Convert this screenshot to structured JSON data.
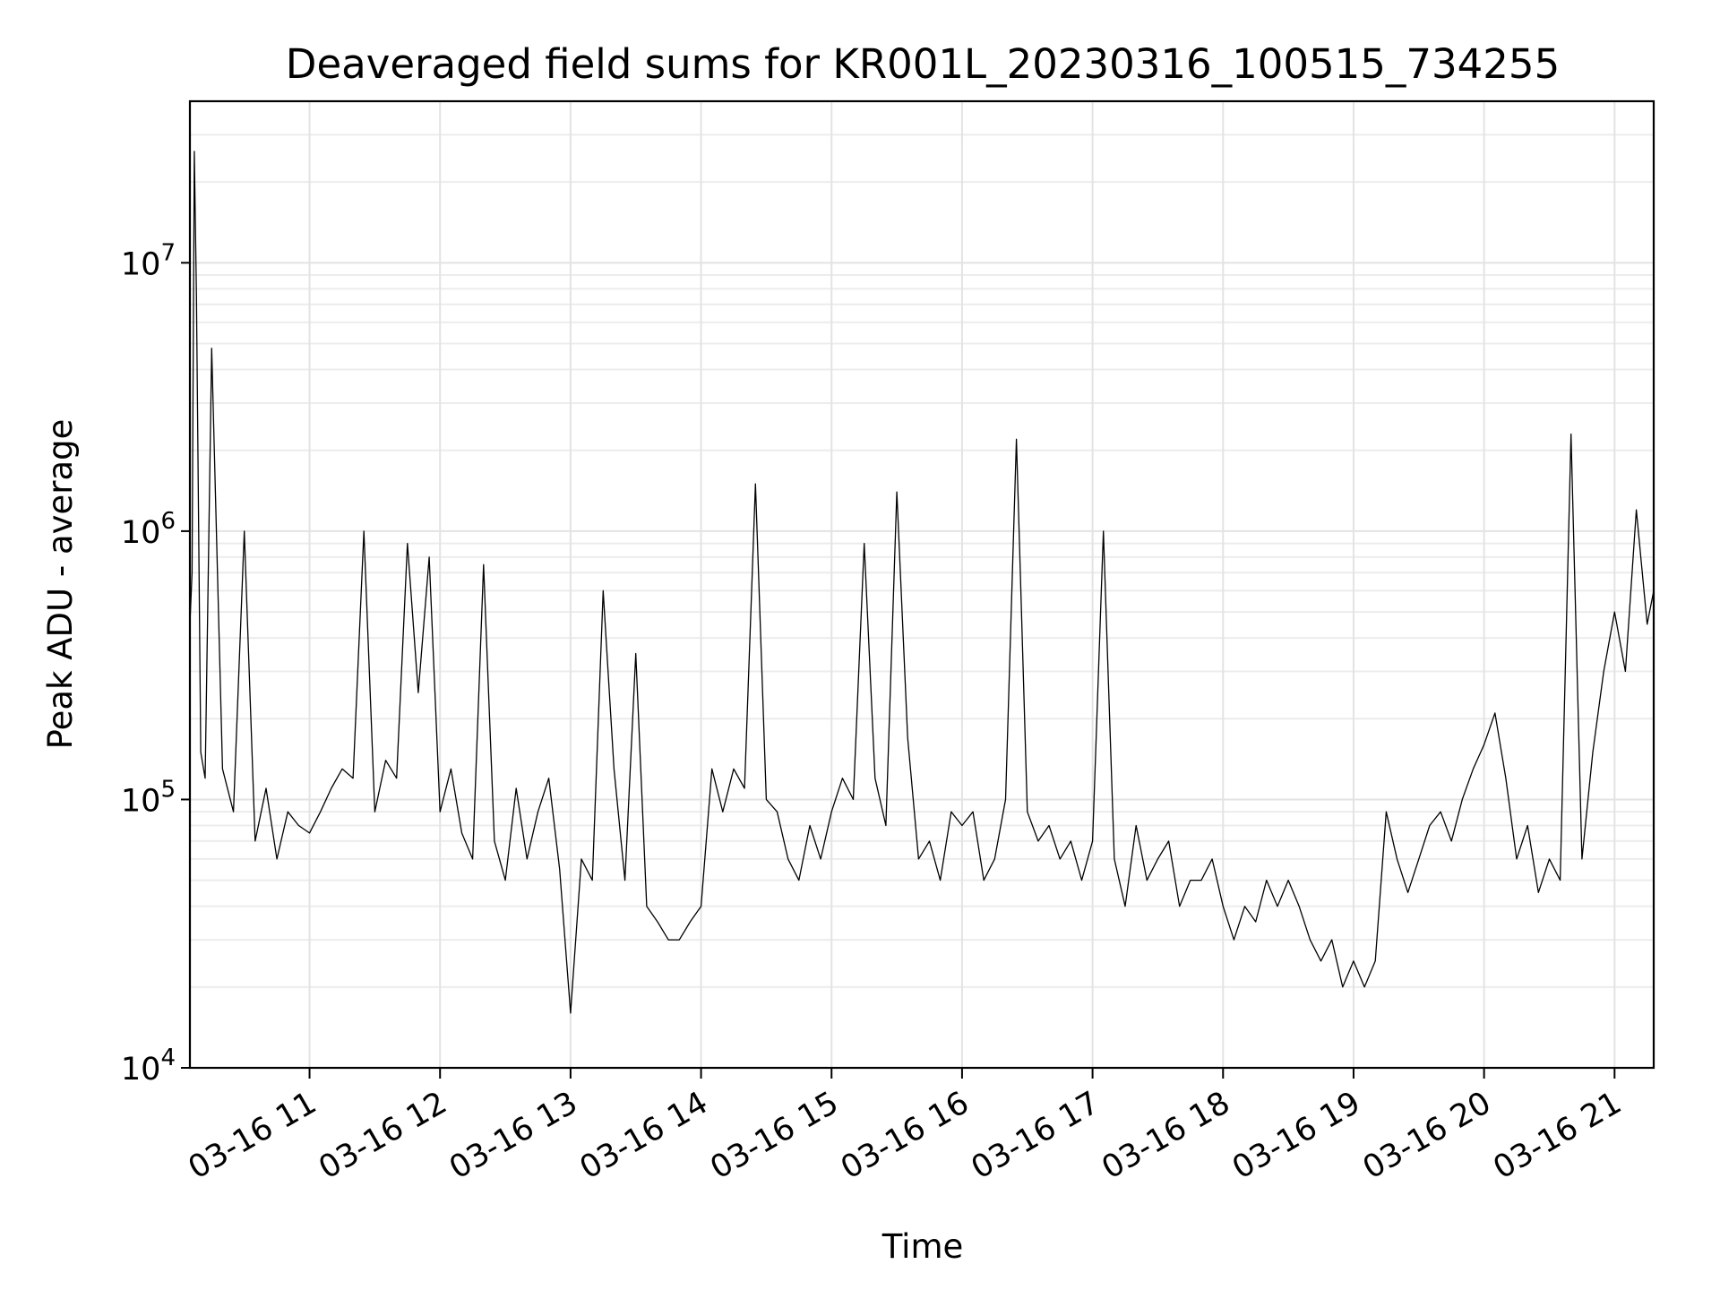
{
  "chart_data": {
    "type": "line",
    "title": "Deaveraged field sums for KR001L_20230316_100515_734255",
    "xlabel": "Time",
    "ylabel": "Peak ADU - average",
    "xlim": [
      "03-16 10:05",
      "03-16 21:18"
    ],
    "ylim": [
      10000,
      40000000
    ],
    "yscale": "log",
    "grid": true,
    "line_color": "#000000",
    "x_ticks": [
      {
        "hour": 11,
        "label": "03-16 11"
      },
      {
        "hour": 12,
        "label": "03-16 12"
      },
      {
        "hour": 13,
        "label": "03-16 13"
      },
      {
        "hour": 14,
        "label": "03-16 14"
      },
      {
        "hour": 15,
        "label": "03-16 15"
      },
      {
        "hour": 16,
        "label": "03-16 16"
      },
      {
        "hour": 17,
        "label": "03-16 17"
      },
      {
        "hour": 18,
        "label": "03-16 18"
      },
      {
        "hour": 19,
        "label": "03-16 19"
      },
      {
        "hour": 20,
        "label": "03-16 20"
      },
      {
        "hour": 21,
        "label": "03-16 21"
      }
    ],
    "y_ticks": [
      {
        "value": 10000,
        "base": "10",
        "exp": "4"
      },
      {
        "value": 100000,
        "base": "10",
        "exp": "5"
      },
      {
        "value": 1000000,
        "base": "10",
        "exp": "6"
      },
      {
        "value": 10000000,
        "base": "10",
        "exp": "7"
      }
    ],
    "series": [
      {
        "x": [
          "03-16 10:05",
          "03-16 10:06",
          "03-16 10:07",
          "03-16 10:08",
          "03-16 10:10",
          "03-16 10:12",
          "03-16 10:15",
          "03-16 10:20",
          "03-16 10:25",
          "03-16 10:30",
          "03-16 10:35",
          "03-16 10:40",
          "03-16 10:45",
          "03-16 10:50",
          "03-16 10:55",
          "03-16 11:00",
          "03-16 11:05",
          "03-16 11:10",
          "03-16 11:15",
          "03-16 11:20",
          "03-16 11:25",
          "03-16 11:30",
          "03-16 11:35",
          "03-16 11:40",
          "03-16 11:45",
          "03-16 11:50",
          "03-16 11:55",
          "03-16 12:00",
          "03-16 12:05",
          "03-16 12:10",
          "03-16 12:15",
          "03-16 12:20",
          "03-16 12:25",
          "03-16 12:30",
          "03-16 12:35",
          "03-16 12:40",
          "03-16 12:45",
          "03-16 12:50",
          "03-16 12:55",
          "03-16 13:00",
          "03-16 13:05",
          "03-16 13:10",
          "03-16 13:15",
          "03-16 13:20",
          "03-16 13:25",
          "03-16 13:30",
          "03-16 13:35",
          "03-16 13:40",
          "03-16 13:45",
          "03-16 13:50",
          "03-16 13:55",
          "03-16 14:00",
          "03-16 14:05",
          "03-16 14:10",
          "03-16 14:15",
          "03-16 14:20",
          "03-16 14:25",
          "03-16 14:30",
          "03-16 14:35",
          "03-16 14:40",
          "03-16 14:45",
          "03-16 14:50",
          "03-16 14:55",
          "03-16 15:00",
          "03-16 15:05",
          "03-16 15:10",
          "03-16 15:15",
          "03-16 15:20",
          "03-16 15:25",
          "03-16 15:30",
          "03-16 15:35",
          "03-16 15:40",
          "03-16 15:45",
          "03-16 15:50",
          "03-16 15:55",
          "03-16 16:00",
          "03-16 16:05",
          "03-16 16:10",
          "03-16 16:15",
          "03-16 16:20",
          "03-16 16:25",
          "03-16 16:30",
          "03-16 16:35",
          "03-16 16:40",
          "03-16 16:45",
          "03-16 16:50",
          "03-16 16:55",
          "03-16 17:00",
          "03-16 17:05",
          "03-16 17:10",
          "03-16 17:15",
          "03-16 17:20",
          "03-16 17:25",
          "03-16 17:30",
          "03-16 17:35",
          "03-16 17:40",
          "03-16 17:45",
          "03-16 17:50",
          "03-16 17:55",
          "03-16 18:00",
          "03-16 18:05",
          "03-16 18:10",
          "03-16 18:15",
          "03-16 18:20",
          "03-16 18:25",
          "03-16 18:30",
          "03-16 18:35",
          "03-16 18:40",
          "03-16 18:45",
          "03-16 18:50",
          "03-16 18:55",
          "03-16 19:00",
          "03-16 19:05",
          "03-16 19:10",
          "03-16 19:15",
          "03-16 19:20",
          "03-16 19:25",
          "03-16 19:30",
          "03-16 19:35",
          "03-16 19:40",
          "03-16 19:45",
          "03-16 19:50",
          "03-16 19:55",
          "03-16 20:00",
          "03-16 20:05",
          "03-16 20:10",
          "03-16 20:15",
          "03-16 20:20",
          "03-16 20:25",
          "03-16 20:30",
          "03-16 20:35",
          "03-16 20:40",
          "03-16 20:45",
          "03-16 20:50",
          "03-16 20:55",
          "03-16 21:00",
          "03-16 21:05",
          "03-16 21:10",
          "03-16 21:15",
          "03-16 21:18"
        ],
        "y": [
          450000,
          700000,
          26000000,
          7500000,
          150000,
          120000,
          4800000,
          130000,
          90000,
          1000000,
          70000,
          110000,
          60000,
          90000,
          80000,
          75000,
          90000,
          110000,
          130000,
          120000,
          1000000,
          90000,
          140000,
          120000,
          900000,
          250000,
          800000,
          90000,
          130000,
          75000,
          60000,
          750000,
          70000,
          50000,
          110000,
          60000,
          90000,
          120000,
          55000,
          16000,
          60000,
          50000,
          600000,
          130000,
          50000,
          350000,
          40000,
          35000,
          30000,
          30000,
          35000,
          40000,
          130000,
          90000,
          130000,
          110000,
          1500000,
          100000,
          90000,
          60000,
          50000,
          80000,
          60000,
          90000,
          120000,
          100000,
          900000,
          120000,
          80000,
          1400000,
          170000,
          60000,
          70000,
          50000,
          90000,
          80000,
          90000,
          50000,
          60000,
          100000,
          2200000,
          90000,
          70000,
          80000,
          60000,
          70000,
          50000,
          70000,
          1000000,
          60000,
          40000,
          80000,
          50000,
          60000,
          70000,
          40000,
          50000,
          50000,
          60000,
          40000,
          30000,
          40000,
          35000,
          50000,
          40000,
          50000,
          40000,
          30000,
          25000,
          30000,
          20000,
          25000,
          20000,
          25000,
          90000,
          60000,
          45000,
          60000,
          80000,
          90000,
          70000,
          100000,
          130000,
          160000,
          210000,
          120000,
          60000,
          80000,
          45000,
          60000,
          50000,
          2300000,
          60000,
          150000,
          300000,
          500000,
          300000,
          1200000,
          450000,
          600000
        ]
      }
    ]
  }
}
